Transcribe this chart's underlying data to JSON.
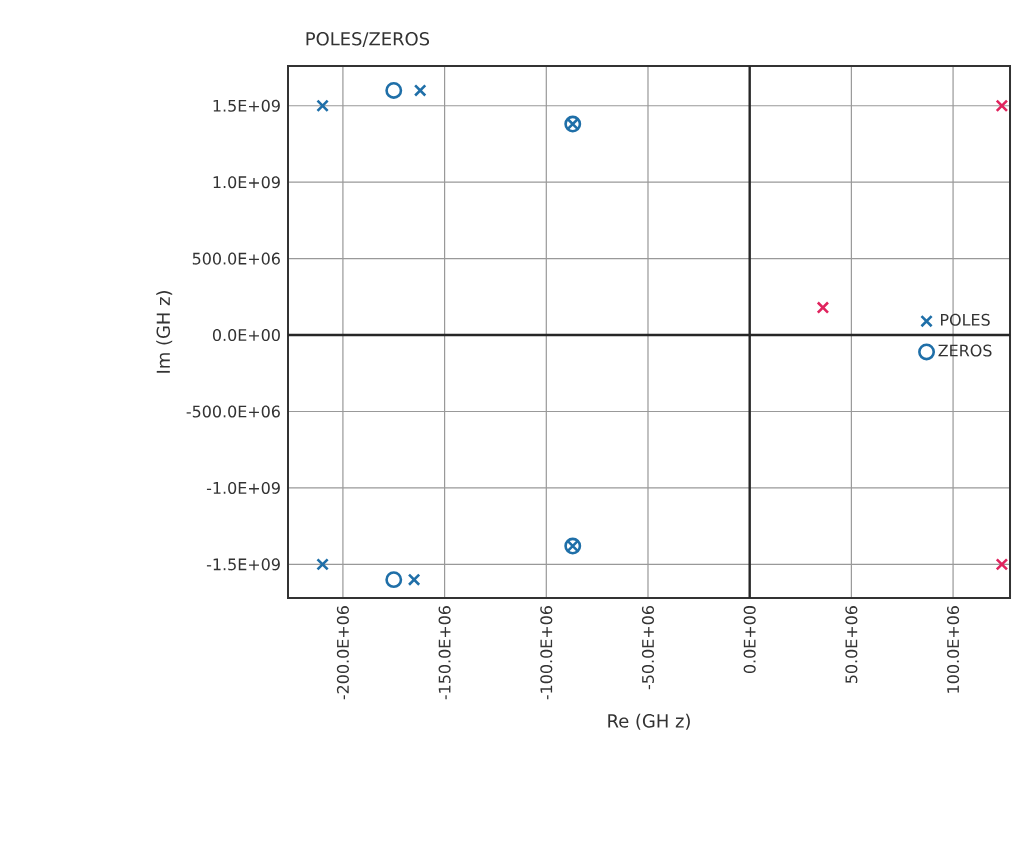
{
  "chart_data": {
    "type": "scatter",
    "title": "POLES/ZEROS",
    "xlabel": "Re (GH z)",
    "ylabel": "Im (GH z)",
    "xlim": [
      -227000000,
      128000000
    ],
    "ylim": [
      -1720000000,
      1760000000
    ],
    "xticks": [
      {
        "value": -200000000,
        "label": "-200.0E+06"
      },
      {
        "value": -150000000,
        "label": "-150.0E+06"
      },
      {
        "value": -100000000,
        "label": "-100.0E+06"
      },
      {
        "value": -50000000,
        "label": "-50.0E+06"
      },
      {
        "value": 0,
        "label": "0.0E+00"
      },
      {
        "value": 50000000,
        "label": "50.0E+06"
      },
      {
        "value": 100000000,
        "label": "100.0E+06"
      }
    ],
    "yticks": [
      {
        "value": -1500000000,
        "label": "-1.5E+09"
      },
      {
        "value": -1000000000,
        "label": "-1.0E+09"
      },
      {
        "value": -500000000,
        "label": "-500.0E+06"
      },
      {
        "value": 0,
        "label": "0.0E+00"
      },
      {
        "value": 500000000,
        "label": "500.0E+06"
      },
      {
        "value": 1000000000,
        "label": "1.0E+09"
      },
      {
        "value": 1500000000,
        "label": "1.5E+09"
      }
    ],
    "grid": true,
    "legend": "right",
    "series": [
      {
        "name": "POLES",
        "color": "#1f6fa8",
        "marker": "cross",
        "x": [
          -210000000,
          -162000000,
          -87000000,
          -210000000,
          -165000000,
          -87000000
        ],
        "values": [
          1500000000,
          1600000000,
          1380000000,
          -1500000000,
          -1600000000,
          -1380000000
        ]
      },
      {
        "name": "ZEROS",
        "color": "#1f6fa8",
        "marker": "circle",
        "x": [
          -175000000,
          -87000000,
          -175000000,
          -87000000
        ],
        "values": [
          1600000000,
          1380000000,
          -1600000000,
          -1380000000
        ]
      },
      {
        "color": "#e0245e",
        "marker": "cross",
        "x": [
          36000000,
          124000000,
          124000000
        ],
        "values": [
          180000000,
          1500000000,
          -1500000000
        ]
      }
    ]
  }
}
